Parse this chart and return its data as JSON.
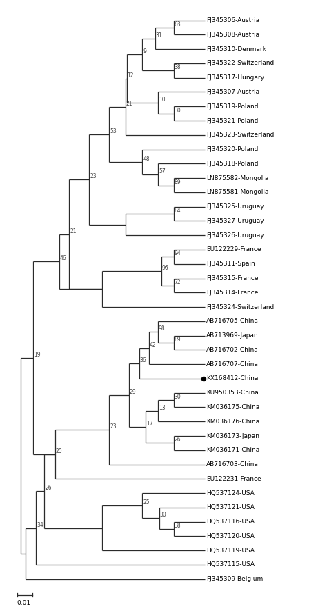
{
  "figsize": [
    4.74,
    8.86
  ],
  "dpi": 100,
  "taxa": [
    "FJ345306-Austria",
    "FJ345308-Austria",
    "FJ345310-Denmark",
    "FJ345322-Switzerland",
    "FJ345317-Hungary",
    "FJ345307-Austria",
    "FJ345319-Poland",
    "FJ345321-Poland",
    "FJ345323-Switzerland",
    "FJ345320-Poland",
    "FJ345318-Poland",
    "LN875582-Mongolia",
    "LN875581-Mongolia",
    "FJ345325-Uruguay",
    "FJ345327-Uruguay",
    "FJ345326-Uruguay",
    "EU122229-France",
    "FJ345311-Spain",
    "FJ345315-France",
    "FJ345314-France",
    "FJ345324-Switzerland",
    "AB716705-China",
    "AB713969-Japan",
    "AB716702-China",
    "AB716707-China",
    "KX168412-China",
    "KU950353-China",
    "KM036175-China",
    "KM036176-China",
    "KM036173-Japan",
    "KM036171-China",
    "AB716703-China",
    "EU122231-France",
    "HQ537124-USA",
    "HQ537121-USA",
    "HQ537116-USA",
    "HQ537120-USA",
    "HQ537119-USA",
    "HQ537115-USA",
    "FJ345309-Belgium"
  ],
  "highlight_taxon": "KX168412-China",
  "background_color": "#ffffff",
  "line_color": "#2a2a2a",
  "text_color": "#000000",
  "bootstrap_color": "#444444",
  "scale_bar_value": "0.01"
}
